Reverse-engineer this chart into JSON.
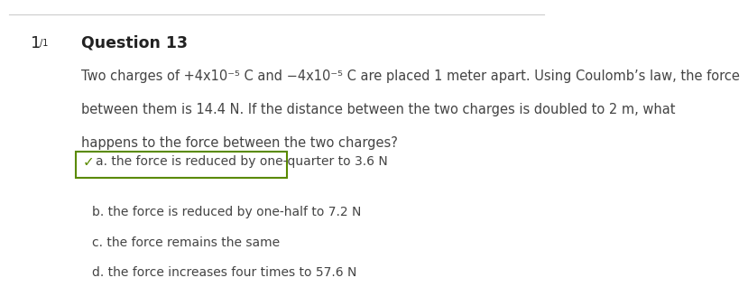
{
  "bg_color": "#ffffff",
  "top_line_color": "#cccccc",
  "question_number": "1",
  "question_number_sub": "/1",
  "question_label": "Question 13",
  "line1": "Two charges of +4x10⁻⁵ C and −4x10⁻⁵ C are placed 1 meter apart. Using Coulomb’s law, the force",
  "line2": "between them is 14.4 N. If the distance between the two charges is doubled to 2 m, what",
  "line3": "happens to the force between the two charges?",
  "answer_a": "a. the force is reduced by one-quarter to 3.6 N",
  "answer_b": "b. the force is reduced by one-half to 7.2 N",
  "answer_c": "c. the force remains the same",
  "answer_d": "d. the force increases four times to 57.6 N",
  "check_color": "#5a8a00",
  "box_color": "#5a8a00",
  "text_color": "#444444",
  "label_color": "#222222",
  "font_size_question": 10.5,
  "font_size_answer": 10.0,
  "font_size_label": 12.5,
  "font_size_number": 13,
  "font_size_sub": 7
}
